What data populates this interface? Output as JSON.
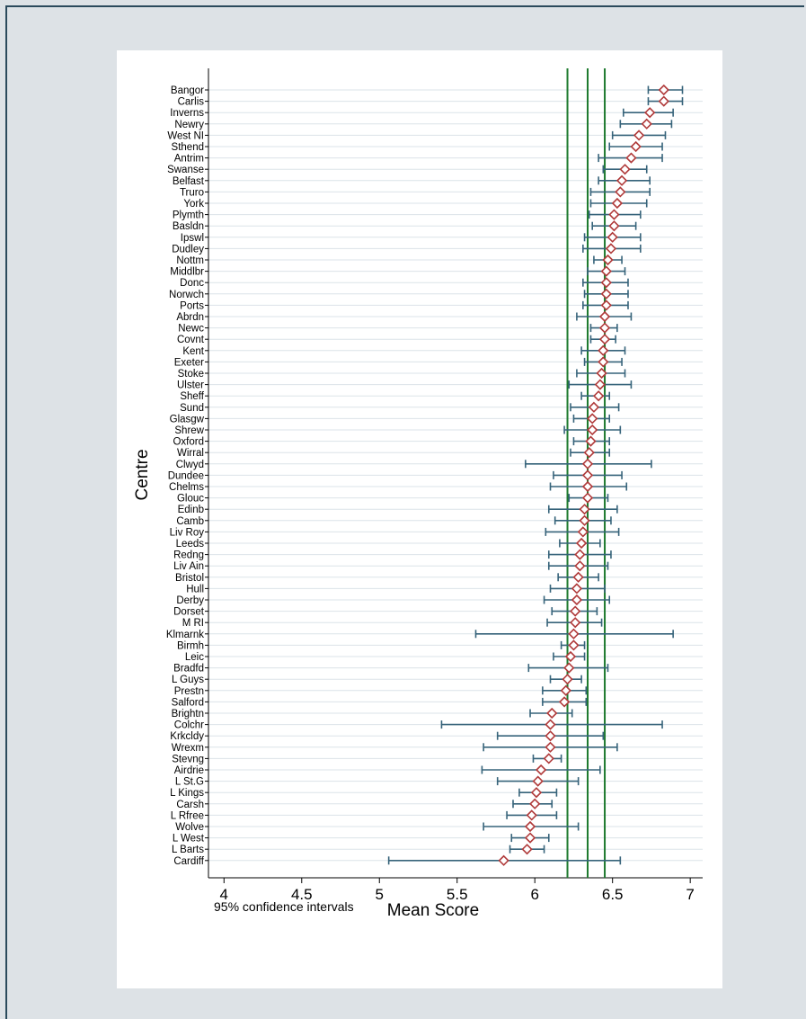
{
  "chart_data": {
    "type": "scatter",
    "orientation": "horizontal",
    "xlabel": "Mean Score",
    "ylabel": "Centre",
    "xlim": [
      3.9,
      7.08
    ],
    "xticks": [
      4,
      4.5,
      5,
      5.5,
      6,
      6.5,
      7
    ],
    "xtick_labels": [
      "4",
      "4.5",
      "5",
      "5.5",
      "6",
      "6.5",
      "7"
    ],
    "note": "95% confidence intervals",
    "reference_lines": [
      6.21,
      6.34,
      6.45
    ],
    "colors": {
      "marker": "#b03a3a",
      "error_bar": "#36637a",
      "reference_line": "#1e7a2e",
      "row_grid": "#dbe3e8"
    },
    "centres": [
      "Bangor",
      "Carlis",
      "Inverns",
      "Newry",
      "West NI",
      "Sthend",
      "Antrim",
      "Swanse",
      "Belfast",
      "Truro",
      "York",
      "Plymth",
      "Basldn",
      "Ipswl",
      "Dudley",
      "Nottm",
      "Middlbr",
      "Donc",
      "Norwch",
      "Ports",
      "Abrdn",
      "Newc",
      "Covnt",
      "Kent",
      "Exeter",
      "Stoke",
      "Ulster",
      "Sheff",
      "Sund",
      "Glasgw",
      "Shrew",
      "Oxford",
      "Wirral",
      "Clwyd",
      "Dundee",
      "Chelms",
      "Glouc",
      "Edinb",
      "Camb",
      "Liv Roy",
      "Leeds",
      "Redng",
      "Liv Ain",
      "Bristol",
      "Hull",
      "Derby",
      "Dorset",
      "M RI",
      "Klmarnk",
      "Birmh",
      "Leic",
      "Bradfd",
      "L Guys",
      "Prestn",
      "Salford",
      "Brightn",
      "Colchr",
      "Krkcldy",
      "Wrexm",
      "Stevng",
      "Airdrie",
      "L St.G",
      "L Kings",
      "Carsh",
      "L Rfree",
      "Wolve",
      "L West",
      "L Barts",
      "Cardiff"
    ],
    "means": [
      6.83,
      6.83,
      6.74,
      6.72,
      6.67,
      6.65,
      6.62,
      6.58,
      6.56,
      6.55,
      6.53,
      6.51,
      6.51,
      6.5,
      6.49,
      6.47,
      6.46,
      6.46,
      6.46,
      6.46,
      6.45,
      6.45,
      6.45,
      6.44,
      6.44,
      6.43,
      6.42,
      6.41,
      6.38,
      6.37,
      6.37,
      6.36,
      6.35,
      6.34,
      6.34,
      6.34,
      6.34,
      6.32,
      6.32,
      6.31,
      6.3,
      6.29,
      6.29,
      6.28,
      6.27,
      6.27,
      6.26,
      6.26,
      6.25,
      6.25,
      6.23,
      6.22,
      6.21,
      6.2,
      6.19,
      6.11,
      6.1,
      6.1,
      6.1,
      6.09,
      6.04,
      6.02,
      6.01,
      6.0,
      5.98,
      5.97,
      5.97,
      5.95,
      5.8
    ],
    "lower": [
      6.73,
      6.73,
      6.57,
      6.55,
      6.5,
      6.48,
      6.41,
      6.44,
      6.41,
      6.36,
      6.36,
      6.35,
      6.37,
      6.32,
      6.31,
      6.38,
      6.34,
      6.31,
      6.32,
      6.31,
      6.27,
      6.36,
      6.36,
      6.3,
      6.32,
      6.27,
      6.22,
      6.3,
      6.23,
      6.25,
      6.19,
      6.25,
      6.23,
      5.94,
      6.12,
      6.1,
      6.22,
      6.09,
      6.13,
      6.07,
      6.16,
      6.09,
      6.09,
      6.15,
      6.1,
      6.06,
      6.11,
      6.08,
      5.62,
      6.17,
      6.12,
      5.96,
      6.1,
      6.05,
      6.05,
      5.97,
      5.4,
      5.76,
      5.67,
      5.99,
      5.66,
      5.76,
      5.9,
      5.86,
      5.82,
      5.67,
      5.85,
      5.84,
      5.06
    ],
    "upper": [
      6.95,
      6.95,
      6.89,
      6.88,
      6.84,
      6.82,
      6.82,
      6.72,
      6.74,
      6.74,
      6.72,
      6.68,
      6.65,
      6.68,
      6.68,
      6.56,
      6.58,
      6.6,
      6.6,
      6.6,
      6.62,
      6.53,
      6.52,
      6.58,
      6.56,
      6.58,
      6.62,
      6.48,
      6.54,
      6.48,
      6.55,
      6.48,
      6.48,
      6.75,
      6.56,
      6.59,
      6.47,
      6.53,
      6.49,
      6.54,
      6.42,
      6.49,
      6.47,
      6.41,
      6.45,
      6.48,
      6.4,
      6.43,
      6.89,
      6.32,
      6.32,
      6.47,
      6.3,
      6.33,
      6.33,
      6.24,
      6.82,
      6.44,
      6.53,
      6.17,
      6.42,
      6.28,
      6.14,
      6.11,
      6.14,
      6.28,
      6.09,
      6.06,
      6.55
    ]
  }
}
